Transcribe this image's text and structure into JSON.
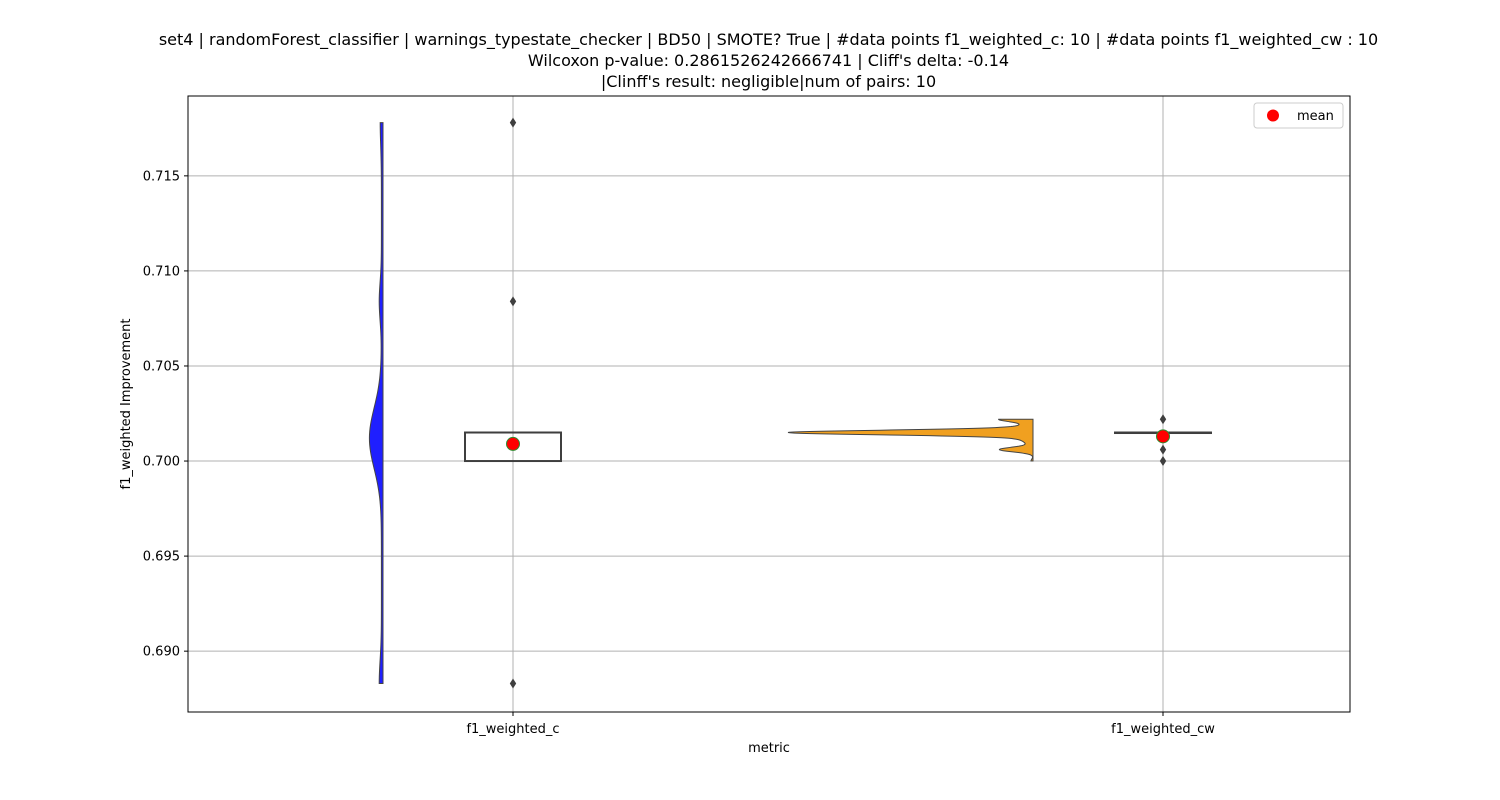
{
  "chart_data": {
    "type": "violin+box",
    "title": [
      "set4 | randomForest_classifier | warnings_typestate_checker | BD50 | SMOTE? True | #data points f1_weighted_c: 10 | #data points f1_weighted_cw : 10",
      "Wilcoxon p-value: 0.2861526242666741 | Cliff's delta: -0.14",
      "|Clinff's result: negligible|num of pairs: 10"
    ],
    "xlabel": "metric",
    "ylabel": "f1_weighted Improvement",
    "ylim": [
      0.6868,
      0.7192
    ],
    "yticks": [
      "0.690",
      "0.695",
      "0.700",
      "0.705",
      "0.710",
      "0.715"
    ],
    "grid": true,
    "legend": {
      "placement": "top-right",
      "entries": [
        {
          "label": "mean",
          "color": "#ff0000"
        }
      ]
    },
    "categories": [
      "f1_weighted_c",
      "f1_weighted_cw"
    ],
    "series": [
      {
        "category": "f1_weighted_c",
        "violin_color": "#1f1fff",
        "box": {
          "q1": 0.7,
          "median": 0.7015,
          "q3": 0.7015,
          "whisker_low": 0.7,
          "whisker_high": 0.7015
        },
        "outliers": [
          0.7178,
          0.7084,
          0.6883
        ],
        "mean": 0.7009
      },
      {
        "category": "f1_weighted_cw",
        "violin_color": "#f0a020",
        "box": {
          "q1": 0.7015,
          "median": 0.7015,
          "q3": 0.7015,
          "whisker_low": 0.7015,
          "whisker_high": 0.7015
        },
        "outliers": [
          0.7022,
          0.7006,
          0.7
        ],
        "mean": 0.7013
      }
    ]
  }
}
